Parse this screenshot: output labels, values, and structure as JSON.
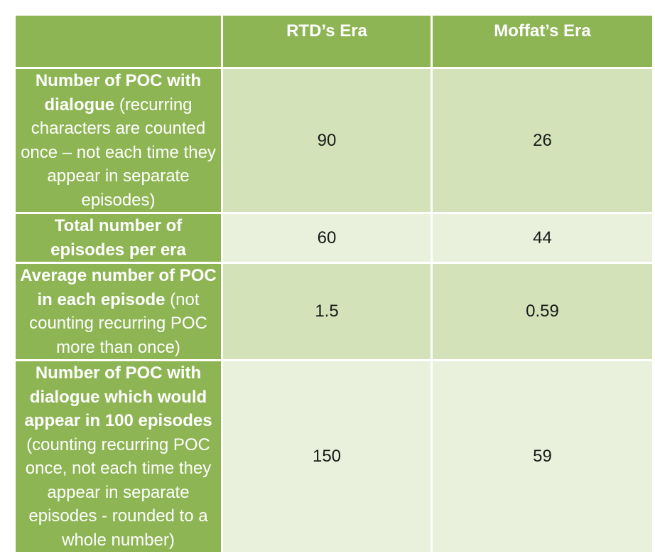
{
  "table": {
    "headers": [
      "",
      "RTD’s Era",
      "Moffat’s Era"
    ],
    "rows": [
      {
        "label_bold": "Number of POC with dialogue",
        "label_normal": " (recurring characters are counted once – not each time they appear in separate episodes)",
        "rtd": "90",
        "moffat": "26"
      },
      {
        "label_bold": "Total number of episodes per era",
        "label_normal": "",
        "rtd": "60",
        "moffat": "44"
      },
      {
        "label_bold": "Average number of POC in each episode",
        "label_normal": " (not counting recurring POC more than once)",
        "rtd": "1.5",
        "moffat": "0.59"
      },
      {
        "label_bold": "Number of POC with dialogue which would appear in 100 episodes",
        "label_normal": " (counting recurring POC once, not each time they appear in separate episodes - rounded to a whole number)",
        "rtd": "150",
        "moffat": "59"
      }
    ]
  },
  "colors": {
    "header_green": "#8eb554",
    "cell_dark": "#d3e2b8",
    "cell_light": "#e9f1dc"
  }
}
